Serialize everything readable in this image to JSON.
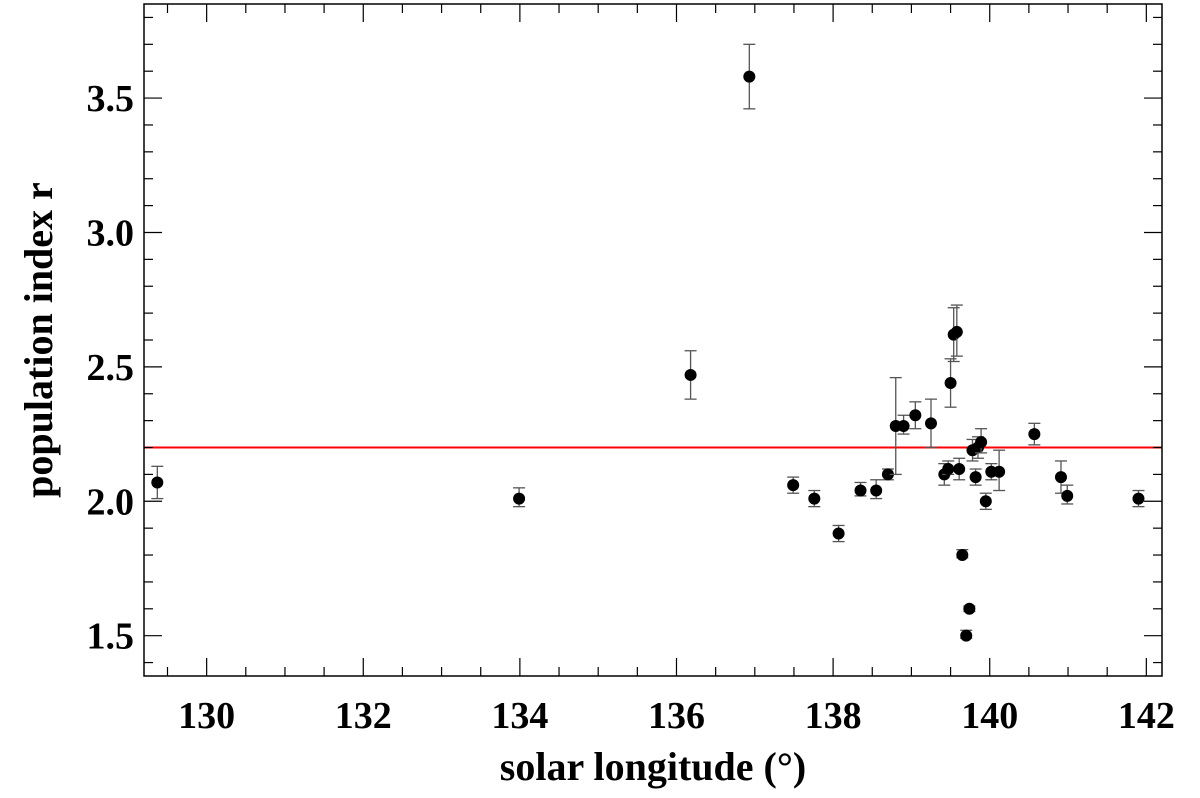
{
  "chart_data": {
    "type": "scatter",
    "xlabel": "solar longitude (°)",
    "ylabel": "population index r",
    "xlim": [
      129.2,
      142.2
    ],
    "ylim": [
      1.35,
      3.85
    ],
    "xticks": [
      130,
      132,
      134,
      136,
      138,
      140,
      142
    ],
    "xtick_labels": [
      "130",
      "132",
      "134",
      "136",
      "138",
      "140",
      "142"
    ],
    "yticks": [
      1.5,
      2.0,
      2.5,
      3.0,
      3.5
    ],
    "ytick_labels": [
      "1.5",
      "2.0",
      "2.5",
      "3.0",
      "3.5"
    ],
    "grid": false,
    "reference_line": {
      "y": 2.2,
      "color": "#ff0000"
    },
    "marker_color": "#000000",
    "errorbar_color": "#555555",
    "points": [
      {
        "x": 129.37,
        "y": 2.07,
        "lo": 2.01,
        "hi": 2.13
      },
      {
        "x": 133.99,
        "y": 2.01,
        "lo": 1.98,
        "hi": 2.05
      },
      {
        "x": 136.18,
        "y": 2.47,
        "lo": 2.38,
        "hi": 2.56
      },
      {
        "x": 136.93,
        "y": 3.58,
        "lo": 3.46,
        "hi": 3.7
      },
      {
        "x": 137.49,
        "y": 2.06,
        "lo": 2.03,
        "hi": 2.09
      },
      {
        "x": 137.76,
        "y": 2.01,
        "lo": 1.98,
        "hi": 2.04
      },
      {
        "x": 138.07,
        "y": 1.88,
        "lo": 1.85,
        "hi": 1.91
      },
      {
        "x": 138.35,
        "y": 2.04,
        "lo": 2.02,
        "hi": 2.07
      },
      {
        "x": 138.55,
        "y": 2.04,
        "lo": 2.01,
        "hi": 2.08
      },
      {
        "x": 138.7,
        "y": 2.1,
        "lo": 2.08,
        "hi": 2.12
      },
      {
        "x": 138.8,
        "y": 2.28,
        "lo": 2.1,
        "hi": 2.46
      },
      {
        "x": 138.9,
        "y": 2.28,
        "lo": 2.25,
        "hi": 2.32
      },
      {
        "x": 139.05,
        "y": 2.32,
        "lo": 2.27,
        "hi": 2.37
      },
      {
        "x": 139.25,
        "y": 2.29,
        "lo": 2.2,
        "hi": 2.38
      },
      {
        "x": 139.42,
        "y": 2.1,
        "lo": 2.06,
        "hi": 2.14
      },
      {
        "x": 139.47,
        "y": 2.12,
        "lo": 2.1,
        "hi": 2.15
      },
      {
        "x": 139.5,
        "y": 2.44,
        "lo": 2.35,
        "hi": 2.53
      },
      {
        "x": 139.54,
        "y": 2.62,
        "lo": 2.52,
        "hi": 2.72
      },
      {
        "x": 139.58,
        "y": 2.63,
        "lo": 2.54,
        "hi": 2.73
      },
      {
        "x": 139.61,
        "y": 2.12,
        "lo": 2.08,
        "hi": 2.16
      },
      {
        "x": 139.65,
        "y": 1.8,
        "lo": 1.79,
        "hi": 1.82
      },
      {
        "x": 139.7,
        "y": 1.5,
        "lo": 1.49,
        "hi": 1.52
      },
      {
        "x": 139.74,
        "y": 1.6,
        "lo": 1.59,
        "hi": 1.61
      },
      {
        "x": 139.78,
        "y": 2.19,
        "lo": 2.15,
        "hi": 2.23
      },
      {
        "x": 139.82,
        "y": 2.09,
        "lo": 2.06,
        "hi": 2.12
      },
      {
        "x": 139.85,
        "y": 2.2,
        "lo": 2.16,
        "hi": 2.24
      },
      {
        "x": 139.89,
        "y": 2.22,
        "lo": 2.18,
        "hi": 2.27
      },
      {
        "x": 139.95,
        "y": 2.0,
        "lo": 1.97,
        "hi": 2.03
      },
      {
        "x": 140.02,
        "y": 2.11,
        "lo": 2.08,
        "hi": 2.14
      },
      {
        "x": 140.12,
        "y": 2.11,
        "lo": 2.04,
        "hi": 2.19
      },
      {
        "x": 140.57,
        "y": 2.25,
        "lo": 2.21,
        "hi": 2.29
      },
      {
        "x": 140.91,
        "y": 2.09,
        "lo": 2.03,
        "hi": 2.15
      },
      {
        "x": 140.99,
        "y": 2.02,
        "lo": 1.99,
        "hi": 2.06
      },
      {
        "x": 141.9,
        "y": 2.01,
        "lo": 1.98,
        "hi": 2.04
      }
    ]
  }
}
